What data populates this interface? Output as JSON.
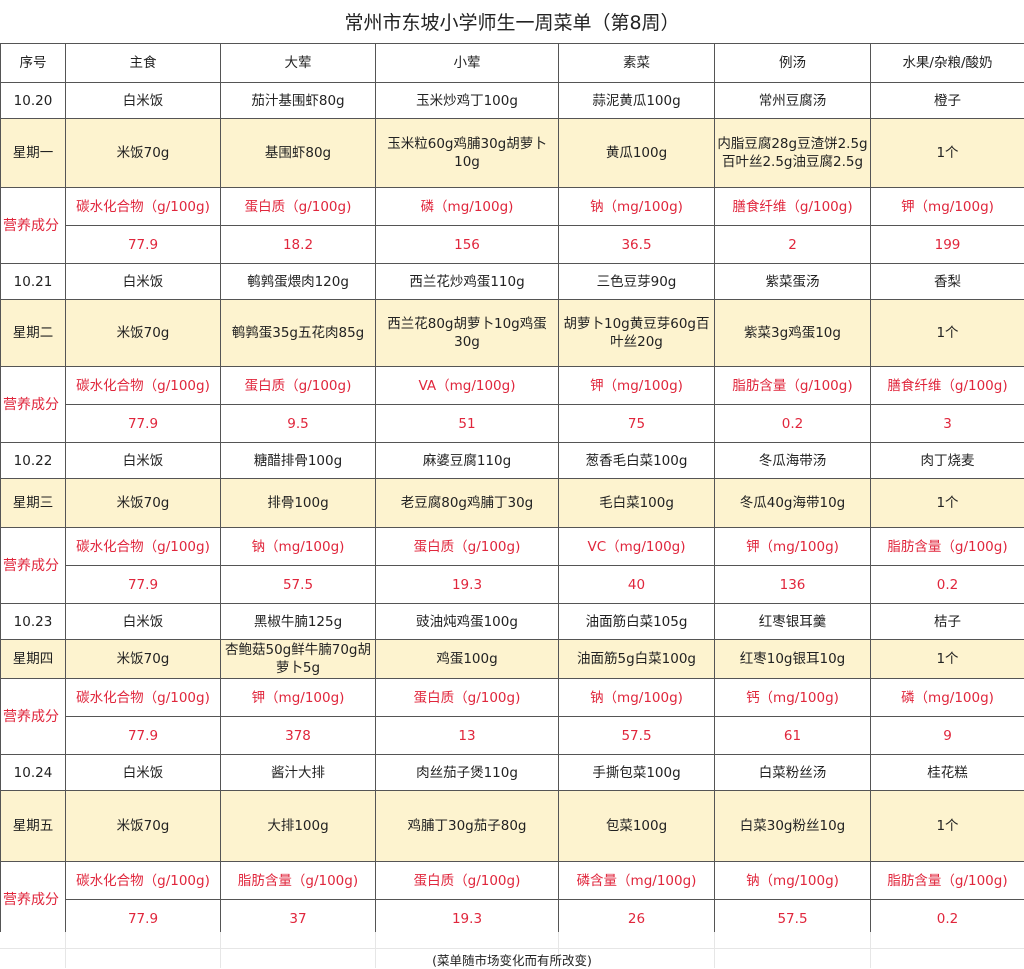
{
  "title": "常州市东坡小学师生一周菜单（第8周）",
  "headers": [
    "序号",
    "主食",
    "大荤",
    "小荤",
    "素菜",
    "例汤",
    "水果/杂粮/酸奶"
  ],
  "nutrition_label": "营养成分",
  "days": [
    {
      "date": "10.20",
      "weekday": "星期一",
      "dishes": [
        "白米饭",
        "茄汁基围虾80g",
        "玉米炒鸡丁100g",
        "蒜泥黄瓜100g",
        "常州豆腐汤",
        "橙子"
      ],
      "ingredients": [
        "米饭70g",
        "基围虾80g",
        "玉米粒60g鸡脯30g胡萝卜10g",
        "黄瓜100g",
        "内脂豆腐28g豆渣饼2.5g百叶丝2.5g油豆腐2.5g",
        "1个"
      ],
      "nutrients": [
        "碳水化合物（g/100g)",
        "蛋白质（g/100g)",
        "磷（mg/100g)",
        "钠（mg/100g)",
        "膳食纤维（g/100g)",
        "钾（mg/100g)"
      ],
      "values": [
        "77.9",
        "18.2",
        "156",
        "36.5",
        "2",
        "199"
      ]
    },
    {
      "date": "10.21",
      "weekday": "星期二",
      "dishes": [
        "白米饭",
        "鹌鹑蛋煨肉120g",
        "西兰花炒鸡蛋110g",
        "三色豆芽90g",
        "紫菜蛋汤",
        "香梨"
      ],
      "ingredients": [
        "米饭70g",
        "鹌鹑蛋35g五花肉85g",
        "西兰花80g胡萝卜10g鸡蛋30g",
        "胡萝卜10g黄豆芽60g百叶丝20g",
        "紫菜3g鸡蛋10g",
        "1个"
      ],
      "nutrients": [
        "碳水化合物（g/100g)",
        "蛋白质（g/100g)",
        "VA（mg/100g)",
        "钾（mg/100g)",
        "脂肪含量（g/100g)",
        "膳食纤维（g/100g)"
      ],
      "values": [
        "77.9",
        "9.5",
        "51",
        "75",
        "0.2",
        "3"
      ]
    },
    {
      "date": "10.22",
      "weekday": "星期三",
      "dishes": [
        "白米饭",
        "糖醋排骨100g",
        "麻婆豆腐110g",
        "葱香毛白菜100g",
        "冬瓜海带汤",
        "肉丁烧麦"
      ],
      "ingredients": [
        "米饭70g",
        "排骨100g",
        "老豆腐80g鸡脯丁30g",
        "毛白菜100g",
        "冬瓜40g海带10g",
        "1个"
      ],
      "nutrients": [
        "碳水化合物（g/100g)",
        "钠（mg/100g)",
        "蛋白质（g/100g)",
        "VC（mg/100g)",
        "钾（mg/100g)",
        "脂肪含量（g/100g)"
      ],
      "values": [
        "77.9",
        "57.5",
        "19.3",
        "40",
        "136",
        "0.2"
      ]
    },
    {
      "date": "10.23",
      "weekday": "星期四",
      "dishes": [
        "白米饭",
        "黑椒牛腩125g",
        "豉油炖鸡蛋100g",
        "油面筋白菜105g",
        "红枣银耳羹",
        "桔子"
      ],
      "ingredients": [
        "米饭70g",
        "杏鲍菇50g鲜牛腩70g胡萝卜5g",
        "鸡蛋100g",
        "油面筋5g白菜100g",
        "红枣10g银耳10g",
        "1个"
      ],
      "nutrients": [
        "碳水化合物（g/100g)",
        "钾（mg/100g)",
        "蛋白质（g/100g)",
        "钠（mg/100g)",
        "钙（mg/100g)",
        "磷（mg/100g)"
      ],
      "values": [
        "77.9",
        "378",
        "13",
        "57.5",
        "61",
        "9"
      ]
    },
    {
      "date": "10.24",
      "weekday": "星期五",
      "dishes": [
        "白米饭",
        "酱汁大排",
        "肉丝茄子煲110g",
        "手撕包菜100g",
        "白菜粉丝汤",
        "桂花糕"
      ],
      "ingredients": [
        "米饭70g",
        "大排100g",
        "鸡脯丁30g茄子80g",
        "包菜100g",
        "白菜30g粉丝10g",
        "1个"
      ],
      "nutrients": [
        "碳水化合物（g/100g)",
        "脂肪含量（g/100g)",
        "蛋白质（g/100g)",
        "磷含量（mg/100g)",
        "钠（mg/100g)",
        "脂肪含量（g/100g)"
      ],
      "values": [
        "77.9",
        "37",
        "19.3",
        "26",
        "57.5",
        "0.2"
      ]
    }
  ],
  "footer": "(菜单随市场变化而有所改变)",
  "colors": {
    "meal_row_bg": "#fdf3cf",
    "nutrition_text": "#e0263c"
  }
}
